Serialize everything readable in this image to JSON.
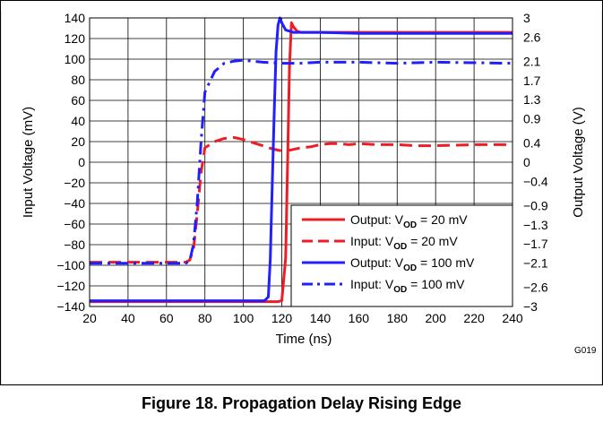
{
  "chart_data": {
    "type": "line",
    "title": "Propagation Delay Rising Edge",
    "xlabel": "Time (ns)",
    "ylabel_left": "Input Voltage (mV)",
    "ylabel_right": "Output Voltage (V)",
    "xlim": [
      20,
      240
    ],
    "ylim_left": [
      -140,
      140
    ],
    "ylim_right": [
      -3,
      3
    ],
    "x_ticks": [
      20,
      40,
      60,
      80,
      100,
      120,
      140,
      160,
      180,
      200,
      220,
      240
    ],
    "y_ticks_left": [
      140,
      120,
      100,
      80,
      60,
      40,
      20,
      0,
      -20,
      -40,
      -60,
      -80,
      -100,
      -120,
      -140
    ],
    "y_ticks_right": [
      {
        "label": "3",
        "value": 3
      },
      {
        "label": "2.6",
        "value": 2.6
      },
      {
        "label": "2.1",
        "value": 2.1
      },
      {
        "label": "1.7",
        "value": 1.7
      },
      {
        "label": "1.3",
        "value": 1.3
      },
      {
        "label": "0.9",
        "value": 0.9
      },
      {
        "label": "0.4",
        "value": 0.4
      },
      {
        "label": "0",
        "value": 0
      },
      {
        "label": "−0.4",
        "value": -0.4
      },
      {
        "label": "−0.9",
        "value": -0.9
      },
      {
        "label": "−1.3",
        "value": -1.3
      },
      {
        "label": "−1.7",
        "value": -1.7
      },
      {
        "label": "−2.1",
        "value": -2.1
      },
      {
        "label": "−2.6",
        "value": -2.6
      },
      {
        "label": "−3",
        "value": -3
      }
    ],
    "grid": true,
    "legend_position": "bottom-right",
    "series": [
      {
        "name_prefix": "Output: V",
        "name_sub": "OD",
        "name_suffix": " = 20 mV",
        "axis": "right",
        "color": "#ee1c24",
        "dash": "solid",
        "x": [
          20,
          118,
          120,
          122,
          123,
          124,
          125,
          126,
          128,
          130,
          140,
          160,
          200,
          240
        ],
        "y": [
          -2.9,
          -2.9,
          -2.88,
          -2.0,
          0.0,
          2.0,
          2.9,
          2.82,
          2.72,
          2.7,
          2.7,
          2.7,
          2.7,
          2.7
        ]
      },
      {
        "name_prefix": "Input: V",
        "name_sub": "OD",
        "name_suffix": " = 20 mV",
        "axis": "left",
        "color": "#ee1c24",
        "dash": "dashed",
        "x": [
          20,
          70,
          72,
          74,
          76,
          78,
          80,
          85,
          90,
          95,
          100,
          105,
          110,
          115,
          120,
          125,
          130,
          135,
          140,
          145,
          150,
          155,
          160,
          170,
          180,
          190,
          200,
          220,
          240
        ],
        "y": [
          -97,
          -97,
          -95,
          -85,
          -50,
          -10,
          14,
          20,
          23,
          24,
          22,
          19,
          16,
          13,
          11,
          12,
          14,
          15,
          17,
          18,
          18,
          17,
          18,
          17,
          17,
          16,
          16,
          17,
          17
        ]
      },
      {
        "name_prefix": "Output: V",
        "name_sub": "OD",
        "name_suffix": " = 100 mV",
        "axis": "right",
        "color": "#1f1fff",
        "dash": "solid",
        "x": [
          20,
          111,
          113,
          114,
          115,
          116,
          117,
          118,
          119,
          120,
          122,
          126,
          130,
          140,
          160,
          200,
          240
        ],
        "y": [
          -2.88,
          -2.88,
          -2.8,
          -2.0,
          -0.5,
          1.0,
          2.3,
          2.85,
          3.0,
          2.9,
          2.75,
          2.7,
          2.7,
          2.7,
          2.68,
          2.68,
          2.68
        ]
      },
      {
        "name_prefix": "Input: V",
        "name_sub": "OD",
        "name_suffix": " = 100 mV",
        "axis": "left",
        "color": "#1f1fff",
        "dash": "dashdot",
        "x": [
          20,
          70,
          72,
          74,
          76,
          78,
          80,
          85,
          90,
          95,
          100,
          105,
          110,
          120,
          130,
          140,
          160,
          180,
          200,
          240
        ],
        "y": [
          -98,
          -98,
          -96,
          -80,
          -40,
          20,
          68,
          88,
          96,
          98,
          99,
          98,
          97,
          96,
          96,
          97,
          97,
          96,
          97,
          96
        ]
      }
    ]
  },
  "figure_caption": "Figure 18. Propagation Delay Rising Edge",
  "figure_id": "G019"
}
